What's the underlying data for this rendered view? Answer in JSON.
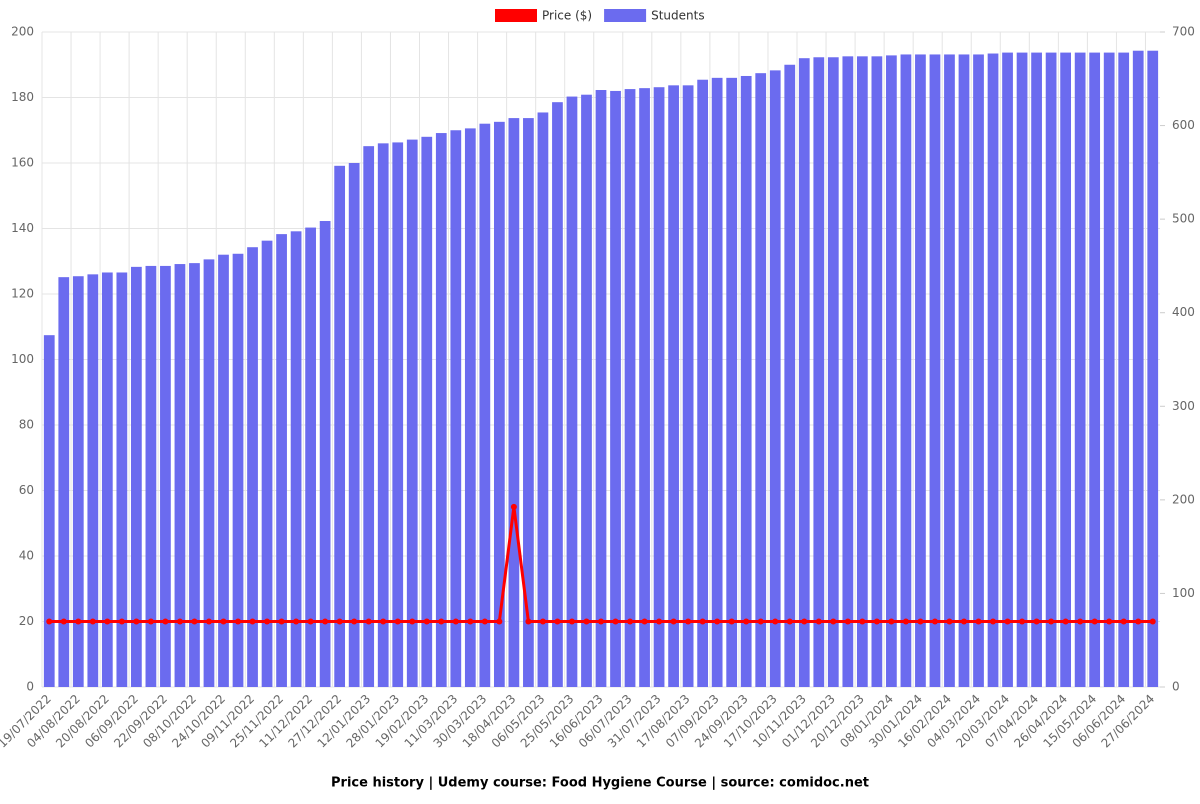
{
  "chart_data": {
    "type": "bar-line",
    "title": "Price history | Udemy course: Food Hygiene Course | source: comidoc.net",
    "categories": [
      "19/07/2022",
      null,
      "04/08/2022",
      null,
      "20/08/2022",
      null,
      "06/09/2022",
      null,
      "22/09/2022",
      null,
      "08/10/2022",
      null,
      "24/10/2022",
      null,
      "09/11/2022",
      null,
      "25/11/2022",
      null,
      "11/12/2022",
      null,
      "27/12/2022",
      null,
      "12/01/2023",
      null,
      "28/01/2023",
      null,
      "19/02/2023",
      null,
      "11/03/2023",
      null,
      "30/03/2023",
      null,
      "18/04/2023",
      null,
      "06/05/2023",
      null,
      "25/05/2023",
      null,
      "16/06/2023",
      null,
      "06/07/2023",
      null,
      "31/07/2023",
      null,
      "17/08/2023",
      null,
      "07/09/2023",
      null,
      "24/09/2023",
      null,
      "17/10/2023",
      null,
      "10/11/2023",
      null,
      "01/12/2023",
      null,
      "20/12/2023",
      null,
      "08/01/2024",
      null,
      "30/01/2024",
      null,
      "16/02/2024",
      null,
      "04/03/2024",
      null,
      "20/03/2024",
      null,
      "07/04/2024",
      null,
      "26/04/2024",
      null,
      "15/05/2024",
      null,
      "06/06/2024",
      null,
      "27/06/2024"
    ],
    "series": [
      {
        "name": "Price ($)",
        "type": "line",
        "color": "#ff0000",
        "values": [
          20,
          20,
          20,
          20,
          20,
          20,
          20,
          20,
          20,
          20,
          20,
          20,
          20,
          20,
          20,
          20,
          20,
          20,
          20,
          20,
          20,
          20,
          20,
          20,
          20,
          20,
          20,
          20,
          20,
          20,
          20,
          20,
          55,
          20,
          20,
          20,
          20,
          20,
          20,
          20,
          20,
          20,
          20,
          20,
          20,
          20,
          20,
          20,
          20,
          20,
          20,
          20,
          20,
          20,
          20,
          20,
          20,
          20,
          20,
          20,
          20,
          20,
          20,
          20,
          20,
          20,
          20,
          20,
          20,
          20,
          20,
          20,
          20,
          20,
          20,
          20,
          20
        ]
      },
      {
        "name": "Students",
        "type": "bar",
        "axis": "y2",
        "color": "#6b6bef",
        "values": [
          376,
          438,
          439,
          441,
          443,
          443,
          449,
          450,
          450,
          452,
          453,
          457,
          462,
          463,
          470,
          477,
          484,
          487,
          491,
          498,
          557,
          560,
          578,
          581,
          582,
          585,
          588,
          592,
          595,
          597,
          602,
          604,
          608,
          608,
          614,
          625,
          631,
          633,
          638,
          637,
          639,
          640,
          641,
          643,
          643,
          649,
          651,
          651,
          653,
          656,
          659,
          665,
          672,
          673,
          673,
          674,
          674,
          674,
          675,
          676,
          676,
          676,
          676,
          676,
          676,
          677,
          678,
          678,
          678,
          678,
          678,
          678,
          678,
          678,
          678,
          680,
          680
        ]
      }
    ],
    "ylim": [
      0,
      200
    ],
    "yticks": [
      0,
      20,
      40,
      60,
      80,
      100,
      120,
      140,
      160,
      180,
      200
    ],
    "y2lim": [
      0,
      700
    ],
    "y2ticks": [
      0,
      100,
      200,
      300,
      400,
      500,
      600,
      700
    ],
    "grid": true,
    "legend": "top"
  }
}
